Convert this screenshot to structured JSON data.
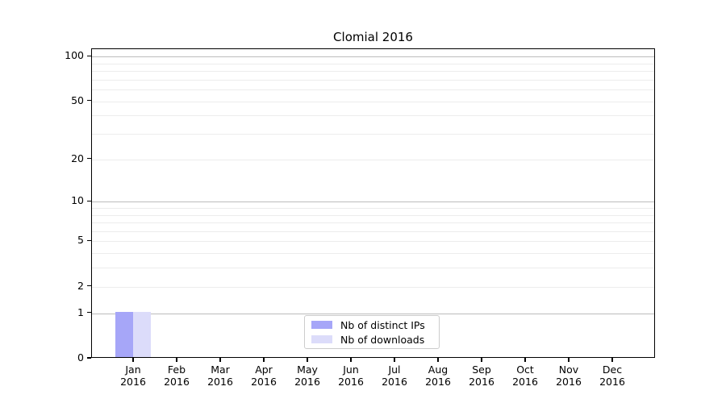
{
  "chart_data": {
    "type": "bar",
    "title": "Clomial 2016",
    "categories": [
      {
        "label": "Jan",
        "year": "2016"
      },
      {
        "label": "Feb",
        "year": "2016"
      },
      {
        "label": "Mar",
        "year": "2016"
      },
      {
        "label": "Apr",
        "year": "2016"
      },
      {
        "label": "May",
        "year": "2016"
      },
      {
        "label": "Jun",
        "year": "2016"
      },
      {
        "label": "Jul",
        "year": "2016"
      },
      {
        "label": "Aug",
        "year": "2016"
      },
      {
        "label": "Sep",
        "year": "2016"
      },
      {
        "label": "Oct",
        "year": "2016"
      },
      {
        "label": "Nov",
        "year": "2016"
      },
      {
        "label": "Dec",
        "year": "2016"
      }
    ],
    "series": [
      {
        "name": "Nb of distinct IPs",
        "color": "#a6a6f8",
        "values": [
          1,
          0,
          0,
          0,
          0,
          0,
          0,
          0,
          0,
          0,
          0,
          0
        ]
      },
      {
        "name": "Nb of downloads",
        "color": "#dcdcfa",
        "values": [
          1,
          0,
          0,
          0,
          0,
          0,
          0,
          0,
          0,
          0,
          0,
          0
        ]
      }
    ],
    "yscale": "log1p",
    "ylim": [
      0,
      112
    ],
    "y_tick_values": [
      100,
      50,
      20,
      10,
      5,
      2,
      1,
      0
    ],
    "y_tick_labels": [
      "100",
      "50",
      "20",
      "10",
      "5",
      "2",
      "1",
      "0"
    ],
    "y_major_gridlines": [
      1,
      10,
      100
    ],
    "y_minor_gridlines": [
      2,
      3,
      4,
      5,
      6,
      7,
      8,
      9,
      20,
      30,
      40,
      50,
      60,
      70,
      80,
      90
    ],
    "grid": true,
    "legend_position": "lower center"
  },
  "colors": {
    "background": "#ffffff",
    "axis": "#000000",
    "grid_major": "#bcbcbc",
    "grid_minor": "#ececec",
    "legend_border": "#cccccc",
    "text": "#000000"
  }
}
